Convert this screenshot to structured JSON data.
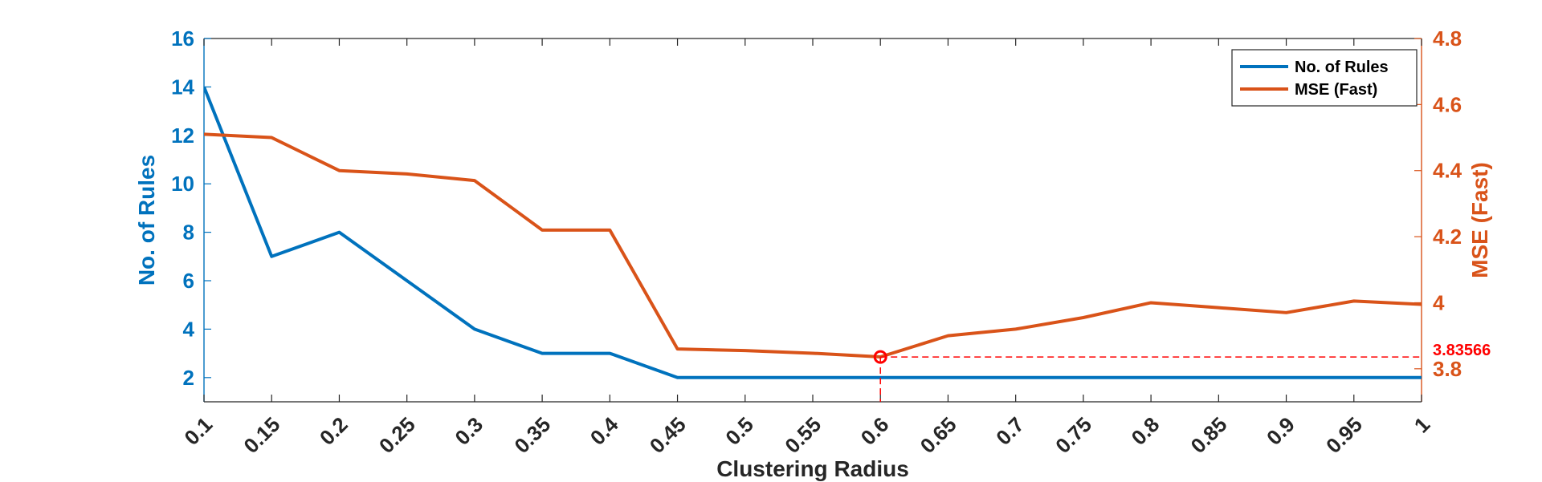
{
  "chart_data": {
    "type": "line",
    "xlabel": "Clustering Radius",
    "ylabel_left": "No. of Rules",
    "ylabel_right": "MSE (Fast)",
    "x": [
      0.1,
      0.15,
      0.2,
      0.25,
      0.3,
      0.35,
      0.4,
      0.45,
      0.5,
      0.55,
      0.6,
      0.65,
      0.7,
      0.75,
      0.8,
      0.85,
      0.9,
      0.95,
      1
    ],
    "x_tick_labels": [
      "0.1",
      "0.15",
      "0.2",
      "0.25",
      "0.3",
      "0.35",
      "0.4",
      "0.45",
      "0.5",
      "0.55",
      "0.6",
      "0.65",
      "0.7",
      "0.75",
      "0.8",
      "0.85",
      "0.9",
      "0.95",
      "1"
    ],
    "xlim": [
      0.1,
      1
    ],
    "ylim_left": [
      1,
      16
    ],
    "ylim_right": [
      3.7,
      4.8
    ],
    "yticks_left": [
      "2",
      "4",
      "6",
      "8",
      "10",
      "12",
      "14",
      "16"
    ],
    "yticks_right": [
      "3.8",
      "4",
      "4.2",
      "4.4",
      "4.6",
      "4.8"
    ],
    "series": [
      {
        "name": "No. of Rules",
        "axis": "left",
        "color": "#0072BD",
        "values": [
          14,
          7,
          8,
          6,
          4,
          3,
          3,
          2,
          2,
          2,
          2,
          2,
          2,
          2,
          2,
          2,
          2,
          2,
          2
        ]
      },
      {
        "name": "MSE (Fast)",
        "axis": "right",
        "color": "#D95319",
        "values": [
          4.51,
          4.5,
          4.4,
          4.39,
          4.37,
          4.22,
          4.22,
          3.86,
          3.855,
          3.847,
          3.836,
          3.9,
          3.92,
          3.955,
          4.0,
          3.985,
          3.97,
          4.005,
          3.995
        ]
      }
    ],
    "annotation": {
      "x": 0.6,
      "y": 3.83566,
      "label": "3.83566",
      "color": "#FF0000"
    },
    "legend_position": "top-right",
    "grid": false
  }
}
